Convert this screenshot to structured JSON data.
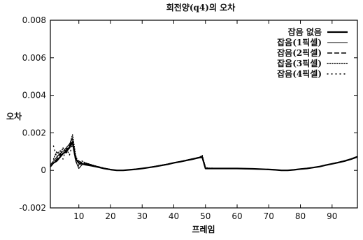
{
  "chart_data": {
    "type": "line",
    "title": "회전양(q4)의 오차",
    "xlabel": "프레임",
    "ylabel": "오차",
    "xlim": [
      1,
      98
    ],
    "ylim": [
      -0.002,
      0.008
    ],
    "x_ticks": [
      10,
      20,
      30,
      40,
      50,
      60,
      70,
      80,
      90
    ],
    "x_tick_labels": [
      "10",
      "20",
      "30",
      "40",
      "50",
      "60",
      "70",
      "80",
      "90"
    ],
    "y_ticks": [
      -0.002,
      0,
      0.002,
      0.004,
      0.006,
      0.008
    ],
    "y_tick_labels": [
      "-0.002",
      "0",
      "0.002",
      "0.004",
      "0.006",
      "0.008"
    ],
    "legend_position": "top-right",
    "grid": false,
    "series": [
      {
        "name": "잡음 없음",
        "style": "solid-thick",
        "x": [
          1,
          2,
          3,
          4,
          5,
          6,
          7,
          8,
          9,
          10,
          11,
          12,
          14,
          16,
          18,
          20,
          22,
          24,
          26,
          28,
          30,
          32,
          34,
          36,
          38,
          40,
          42,
          44,
          46,
          48,
          49,
          50,
          52,
          55,
          60,
          65,
          70,
          72,
          74,
          76,
          78,
          80,
          82,
          84,
          86,
          88,
          90,
          92,
          94,
          96,
          98
        ],
        "y": [
          0.0002,
          0.0004,
          0.0005,
          0.0007,
          0.0009,
          0.001,
          0.0012,
          0.0015,
          0.0006,
          0.0004,
          0.00035,
          0.0003,
          0.00025,
          0.00018,
          0.0001,
          4e-05,
          0.0,
          0.0,
          3e-05,
          6e-05,
          0.0001,
          0.00015,
          0.0002,
          0.00026,
          0.00032,
          0.0004,
          0.00046,
          0.00053,
          0.0006,
          0.00068,
          0.0007,
          0.0001,
          0.0001,
          0.0001,
          0.0001,
          8e-05,
          5e-05,
          3e-05,
          0.0,
          0.0,
          3e-05,
          7e-05,
          0.0001,
          0.00015,
          0.0002,
          0.00028,
          0.00035,
          0.00042,
          0.0005,
          0.0006,
          0.00072
        ]
      },
      {
        "name": "잡음(1픽셀)",
        "style": "solid",
        "x": [
          1,
          2,
          3,
          4,
          5,
          6,
          7,
          8,
          9,
          10,
          11,
          12,
          14,
          16,
          18,
          20,
          22,
          24,
          26,
          28,
          30,
          32,
          34,
          36,
          38,
          40,
          42,
          44,
          46,
          48,
          49,
          50,
          52,
          55,
          60,
          65,
          70,
          72,
          74,
          76,
          78,
          80,
          82,
          84,
          86,
          88,
          90,
          92,
          94,
          96,
          98
        ],
        "y": [
          0.0003,
          0.0005,
          0.0007,
          0.0009,
          0.001,
          0.0012,
          0.0014,
          0.0017,
          0.0005,
          0.0001,
          0.0003,
          0.0004,
          0.0003,
          0.0002,
          0.00012,
          5e-05,
          0.0,
          0.0,
          4e-05,
          7e-05,
          0.0001,
          0.00016,
          0.00022,
          0.00028,
          0.00034,
          0.0004,
          0.00048,
          0.00055,
          0.00063,
          0.0007,
          0.00075,
          8e-05,
          0.00012,
          9e-05,
          0.00011,
          7e-05,
          4e-05,
          2e-05,
          0.0,
          1e-05,
          4e-05,
          8e-05,
          0.00011,
          0.00016,
          0.00021,
          0.00029,
          0.00036,
          0.00044,
          0.00052,
          0.00062,
          0.00075
        ]
      },
      {
        "name": "잡음(2픽셀)",
        "style": "dashed",
        "x": [
          1,
          2,
          3,
          4,
          5,
          6,
          7,
          8,
          9,
          10,
          11,
          12,
          14,
          16,
          18,
          20,
          22,
          24,
          26,
          28,
          30,
          32,
          34,
          36,
          38,
          40,
          42,
          44,
          46,
          48,
          49,
          50,
          52,
          55,
          60,
          65,
          70,
          72,
          74,
          76,
          78,
          80,
          82,
          84,
          86,
          88,
          90,
          92,
          94,
          96,
          98
        ],
        "y": [
          0.0002,
          0.0004,
          0.0006,
          0.0008,
          0.0009,
          0.0011,
          0.0013,
          0.0016,
          0.0007,
          0.0005,
          0.0004,
          0.00035,
          0.00028,
          0.0002,
          0.00011,
          5e-05,
          0.0,
          0.0,
          3e-05,
          6e-05,
          0.0001,
          0.00015,
          0.00021,
          0.00027,
          0.00033,
          0.00041,
          0.00047,
          0.00054,
          0.00062,
          0.00069,
          0.00073,
          0.00012,
          0.0001,
          0.00011,
          9e-05,
          8e-05,
          5e-05,
          3e-05,
          0.0,
          0.0,
          3e-05,
          7e-05,
          0.0001,
          0.00015,
          0.0002,
          0.00028,
          0.00035,
          0.00043,
          0.00051,
          0.00061,
          0.00073
        ]
      },
      {
        "name": "잡음(3픽셀)",
        "style": "dotted",
        "x": [
          2,
          3,
          4,
          5,
          6,
          7,
          8,
          9,
          10,
          11,
          12,
          14,
          16,
          18,
          20,
          22,
          24,
          26,
          28,
          30,
          32,
          34,
          36,
          38,
          40,
          42,
          44,
          46,
          48,
          49,
          50,
          52,
          55,
          60,
          65,
          70,
          72,
          74,
          76,
          78,
          80,
          82,
          84,
          86,
          88,
          90,
          92,
          94,
          96,
          98
        ],
        "y": [
          0.0006,
          0.001,
          0.0008,
          0.0012,
          0.0009,
          0.0013,
          0.0019,
          0.0008,
          0.0003,
          0.0005,
          0.0004,
          0.0003,
          0.0002,
          0.00012,
          5e-05,
          0.0,
          0.0,
          3e-05,
          6e-05,
          0.0001,
          0.00015,
          0.0002,
          0.00026,
          0.00032,
          0.0004,
          0.00046,
          0.00053,
          0.0006,
          0.00068,
          0.0008,
          0.00015,
          0.0001,
          0.0001,
          0.0001,
          8e-05,
          5e-05,
          3e-05,
          0.0,
          0.0,
          3e-05,
          7e-05,
          0.0001,
          0.00015,
          0.0002,
          0.00028,
          0.00035,
          0.00042,
          0.0005,
          0.0006,
          0.00072
        ]
      },
      {
        "name": "잡음(4픽셀)",
        "style": "sparse-dotted",
        "x": [
          2,
          3,
          4,
          5,
          6,
          7,
          8,
          9,
          10,
          11,
          12,
          14,
          16,
          18,
          20,
          22,
          24,
          26,
          28,
          30,
          32,
          34,
          36,
          38,
          40,
          42,
          44,
          46,
          48,
          49,
          50,
          52,
          55,
          60,
          65,
          70,
          72,
          74,
          76,
          78,
          80,
          82,
          84,
          86,
          88,
          90,
          92,
          94,
          96,
          98
        ],
        "y": [
          0.0013,
          0.0007,
          0.0011,
          0.0006,
          0.0012,
          0.0008,
          0.0014,
          0.0005,
          0.0002,
          0.0004,
          0.0003,
          0.00025,
          0.00018,
          0.0001,
          4e-05,
          0.0,
          0.0,
          3e-05,
          6e-05,
          0.0001,
          0.00015,
          0.0002,
          0.00026,
          0.00032,
          0.0004,
          0.00046,
          0.00053,
          0.0006,
          0.00068,
          0.0007,
          0.0001,
          0.00012,
          9e-05,
          0.00011,
          8e-05,
          5e-05,
          3e-05,
          0.0,
          0.0,
          3e-05,
          7e-05,
          0.0001,
          0.00015,
          0.0002,
          0.00028,
          0.00035,
          0.00042,
          0.0005,
          0.0006,
          0.00072
        ]
      }
    ]
  }
}
